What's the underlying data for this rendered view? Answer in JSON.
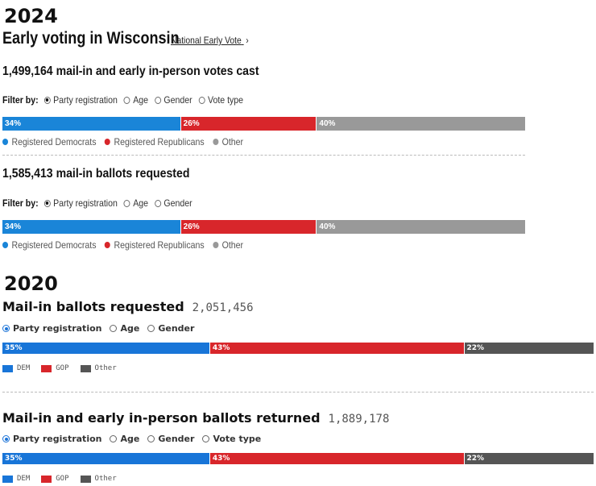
{
  "colors": {
    "dem": "#1a85d8",
    "gop": "#d8262b",
    "other": "#999999",
    "other_2020": "#555555",
    "dem_2020": "#1875d8"
  },
  "y2024": {
    "year": "2024",
    "title": "Early voting in Wisconsin",
    "link": "National Early Vote",
    "link_icon": "chevron-right-icon",
    "cast": {
      "count": "1,499,164",
      "label": "mail-in and early in-person votes cast",
      "filter_label": "Filter by:",
      "options": [
        "Party registration",
        "Age",
        "Gender",
        "Vote type"
      ],
      "selected": 0,
      "bar": [
        {
          "label": "34%",
          "value": 34,
          "color": "#1a85d8"
        },
        {
          "label": "26%",
          "value": 26,
          "color": "#d8262b"
        },
        {
          "label": "40%",
          "value": 40,
          "color": "#999999"
        }
      ],
      "legend": [
        "Registered Democrats",
        "Registered Republicans",
        "Other"
      ]
    },
    "requested": {
      "count": "1,585,413",
      "label": "mail-in ballots requested",
      "filter_label": "Filter by:",
      "options": [
        "Party registration",
        "Age",
        "Gender"
      ],
      "selected": 0,
      "bar": [
        {
          "label": "34%",
          "value": 34,
          "color": "#1a85d8"
        },
        {
          "label": "26%",
          "value": 26,
          "color": "#d8262b"
        },
        {
          "label": "40%",
          "value": 40,
          "color": "#999999"
        }
      ],
      "legend": [
        "Registered Democrats",
        "Registered Republicans",
        "Other"
      ]
    }
  },
  "y2020": {
    "year": "2020",
    "requested": {
      "title": "Mail-in ballots requested",
      "count": "2,051,456",
      "options": [
        "Party registration",
        "Age",
        "Gender"
      ],
      "selected": 0,
      "bar": [
        {
          "label": "35%",
          "value": 35,
          "color": "#1875d8"
        },
        {
          "label": "43%",
          "value": 43,
          "color": "#d8262b"
        },
        {
          "label": "22%",
          "value": 22,
          "color": "#555555"
        }
      ],
      "legend": [
        "DEM",
        "GOP",
        "Other"
      ]
    },
    "returned": {
      "title": "Mail-in and early in-person ballots returned",
      "count": "1,889,178",
      "options": [
        "Party registration",
        "Age",
        "Gender",
        "Vote type"
      ],
      "selected": 0,
      "bar": [
        {
          "label": "35%",
          "value": 35,
          "color": "#1875d8"
        },
        {
          "label": "43%",
          "value": 43,
          "color": "#d8262b"
        },
        {
          "label": "22%",
          "value": 22,
          "color": "#555555"
        }
      ],
      "legend": [
        "DEM",
        "GOP",
        "Other"
      ]
    }
  }
}
